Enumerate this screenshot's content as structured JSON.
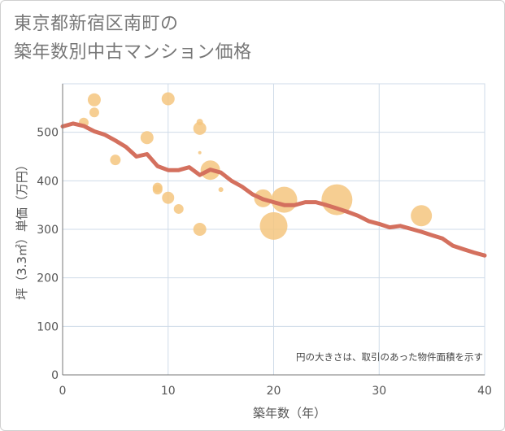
{
  "title_line1": "東京都新宿区南町の",
  "title_line2": "築年数別中古マンション価格",
  "note": "円の大きさは、取引のあった物件面積を示す",
  "colors": {
    "line": "#d4705e",
    "bubble": "#f5c57f",
    "grid": "#cfdbe8",
    "axis": "#777777"
  },
  "chart_data": {
    "type": "scatter",
    "xlabel": "築年数（年）",
    "ylabel": "坪（3.3㎡）単価（万円）",
    "xlim": [
      0,
      40
    ],
    "ylim": [
      0,
      600
    ],
    "x_ticks": [
      0,
      10,
      20,
      30,
      40
    ],
    "y_ticks": [
      0,
      100,
      200,
      300,
      400,
      500
    ],
    "grid": true,
    "bubbles": [
      {
        "x": 2,
        "y": 520,
        "size": 12
      },
      {
        "x": 3,
        "y": 567,
        "size": 16
      },
      {
        "x": 3,
        "y": 541,
        "size": 12
      },
      {
        "x": 5,
        "y": 443,
        "size": 13
      },
      {
        "x": 8,
        "y": 489,
        "size": 16
      },
      {
        "x": 9,
        "y": 386,
        "size": 12
      },
      {
        "x": 9,
        "y": 382,
        "size": 12
      },
      {
        "x": 10,
        "y": 569,
        "size": 16
      },
      {
        "x": 10,
        "y": 365,
        "size": 15
      },
      {
        "x": 11,
        "y": 342,
        "size": 12
      },
      {
        "x": 13,
        "y": 521,
        "size": 8
      },
      {
        "x": 13,
        "y": 508,
        "size": 16
      },
      {
        "x": 13,
        "y": 458,
        "size": 4
      },
      {
        "x": 13,
        "y": 300,
        "size": 16
      },
      {
        "x": 14,
        "y": 422,
        "size": 24
      },
      {
        "x": 15,
        "y": 382,
        "size": 6
      },
      {
        "x": 19,
        "y": 364,
        "size": 22
      },
      {
        "x": 20,
        "y": 307,
        "size": 34
      },
      {
        "x": 21,
        "y": 361,
        "size": 32
      },
      {
        "x": 26,
        "y": 361,
        "size": 38
      },
      {
        "x": 34,
        "y": 328,
        "size": 26
      }
    ],
    "series": [
      {
        "x": [
          0,
          1,
          2,
          3,
          4,
          5,
          6,
          7,
          8,
          9,
          10,
          11,
          12,
          13,
          14,
          15,
          16,
          17,
          18,
          19,
          20,
          21,
          22,
          23,
          24,
          25,
          26,
          27,
          28,
          29,
          30,
          31,
          32,
          33,
          34,
          35,
          36,
          37,
          38,
          39,
          40
        ],
        "values": [
          512,
          518,
          513,
          502,
          495,
          483,
          470,
          450,
          455,
          430,
          422,
          422,
          428,
          412,
          423,
          417,
          400,
          388,
          372,
          362,
          356,
          350,
          350,
          356,
          356,
          350,
          343,
          336,
          328,
          317,
          311,
          304,
          307,
          301,
          295,
          288,
          281,
          266,
          259,
          252,
          246
        ]
      }
    ]
  }
}
